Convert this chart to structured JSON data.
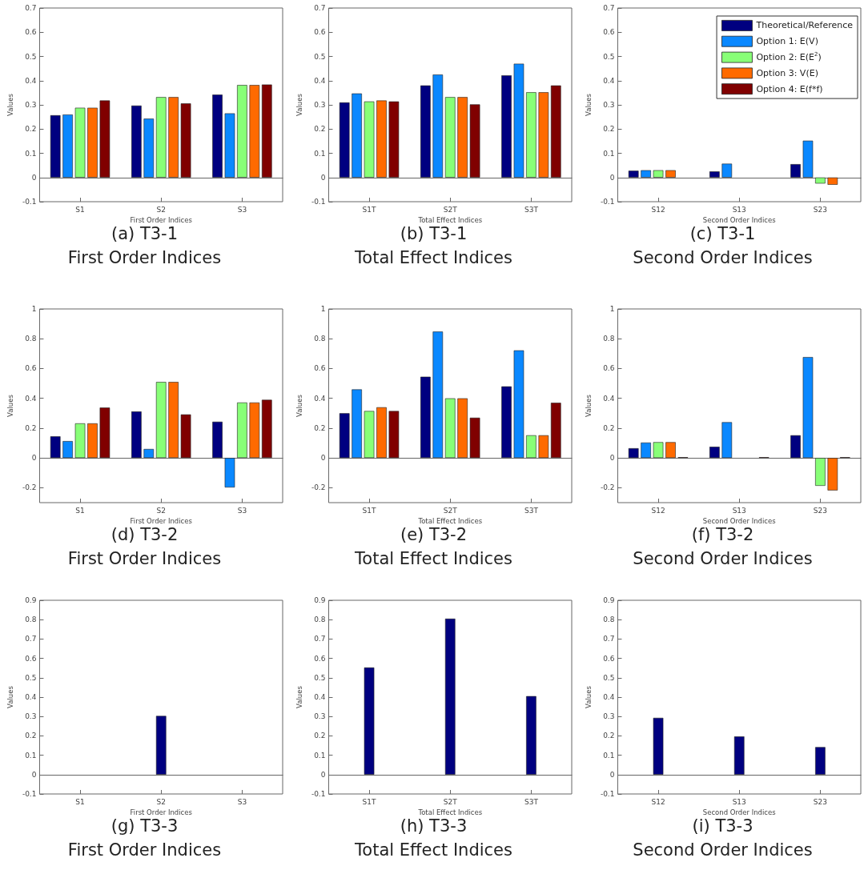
{
  "chart_data": [
    {
      "type": "bar",
      "title": "(a) T3-1",
      "subtitle": "First Order Indices",
      "xlabel": "First Order Indices",
      "ylabel": "Values",
      "categories": [
        "S1",
        "S2",
        "S3"
      ],
      "ylim": [
        -0.1,
        0.7
      ],
      "yticks": [
        -0.1,
        0,
        0.1,
        0.2,
        0.3,
        0.4,
        0.5,
        0.6,
        0.7
      ],
      "series": [
        {
          "color": "#000080",
          "values": [
            0.257,
            0.297,
            0.342
          ]
        },
        {
          "color": "#0a88ff",
          "values": [
            0.26,
            0.243,
            0.265
          ]
        },
        {
          "color": "#88ff77",
          "values": [
            0.288,
            0.332,
            0.382
          ]
        },
        {
          "color": "#ff6a00",
          "values": [
            0.288,
            0.332,
            0.382
          ]
        },
        {
          "color": "#800000",
          "values": [
            0.318,
            0.306,
            0.384
          ]
        }
      ]
    },
    {
      "type": "bar",
      "title": "(b) T3-1",
      "subtitle": "Total Effect Indices",
      "xlabel": "Total Effect Indices",
      "ylabel": "Values",
      "categories": [
        "S1T",
        "S2T",
        "S3T"
      ],
      "ylim": [
        -0.1,
        0.7
      ],
      "yticks": [
        -0.1,
        0,
        0.1,
        0.2,
        0.3,
        0.4,
        0.5,
        0.6,
        0.7
      ],
      "series": [
        {
          "color": "#000080",
          "values": [
            0.31,
            0.38,
            0.422
          ]
        },
        {
          "color": "#0a88ff",
          "values": [
            0.347,
            0.425,
            0.47
          ]
        },
        {
          "color": "#88ff77",
          "values": [
            0.314,
            0.332,
            0.352
          ]
        },
        {
          "color": "#ff6a00",
          "values": [
            0.318,
            0.332,
            0.352
          ]
        },
        {
          "color": "#800000",
          "values": [
            0.314,
            0.302,
            0.38
          ]
        }
      ]
    },
    {
      "type": "bar",
      "title": "(c) T3-1",
      "subtitle": "Second Order Indices",
      "xlabel": "Second Order Indices",
      "ylabel": "Values",
      "categories": [
        "S12",
        "S13",
        "S23"
      ],
      "ylim": [
        -0.1,
        0.7
      ],
      "yticks": [
        -0.1,
        0,
        0.1,
        0.2,
        0.3,
        0.4,
        0.5,
        0.6,
        0.7
      ],
      "legend": "top right",
      "series": [
        {
          "name": "Theoretical/Reference",
          "color": "#000080",
          "values": [
            0.028,
            0.025,
            0.055
          ]
        },
        {
          "name": "Option 1: E(V)",
          "color": "#0a88ff",
          "values": [
            0.03,
            0.057,
            0.152
          ]
        },
        {
          "name": "Option 2: E(E$^{2}$)",
          "color": "#88ff77",
          "values": [
            0.03,
            null,
            -0.025
          ]
        },
        {
          "name": "Option 3: V(E)",
          "color": "#ff6a00",
          "values": [
            0.03,
            null,
            -0.03
          ]
        },
        {
          "name": "Option 4: E(f*f)",
          "color": "#800000",
          "values": [
            null,
            null,
            null
          ]
        }
      ]
    },
    {
      "type": "bar",
      "title": "(d) T3-2",
      "subtitle": "First Order Indices",
      "xlabel": "First Order Indices",
      "ylabel": "Values",
      "categories": [
        "S1",
        "S2",
        "S3"
      ],
      "ylim": [
        -0.3,
        1
      ],
      "yticks": [
        -0.2,
        0,
        0.2,
        0.4,
        0.6,
        0.8,
        1
      ],
      "series": [
        {
          "color": "#000080",
          "values": [
            0.145,
            0.312,
            0.243
          ]
        },
        {
          "color": "#0a88ff",
          "values": [
            0.113,
            0.06,
            -0.198
          ]
        },
        {
          "color": "#88ff77",
          "values": [
            0.232,
            0.51,
            0.372
          ]
        },
        {
          "color": "#ff6a00",
          "values": [
            0.232,
            0.51,
            0.372
          ]
        },
        {
          "color": "#800000",
          "values": [
            0.338,
            0.292,
            0.39
          ]
        }
      ]
    },
    {
      "type": "bar",
      "title": "(e) T3-2",
      "subtitle": "Total Effect Indices",
      "xlabel": "Total Effect Indices",
      "ylabel": "Values",
      "categories": [
        "S1T",
        "S2T",
        "S3T"
      ],
      "ylim": [
        -0.3,
        1
      ],
      "yticks": [
        -0.2,
        0,
        0.2,
        0.4,
        0.6,
        0.8,
        1
      ],
      "series": [
        {
          "color": "#000080",
          "values": [
            0.3,
            0.545,
            0.48
          ]
        },
        {
          "color": "#0a88ff",
          "values": [
            0.46,
            0.848,
            0.722
          ]
        },
        {
          "color": "#88ff77",
          "values": [
            0.315,
            0.4,
            0.152
          ]
        },
        {
          "color": "#ff6a00",
          "values": [
            0.34,
            0.4,
            0.152
          ]
        },
        {
          "color": "#800000",
          "values": [
            0.315,
            0.27,
            0.37
          ]
        }
      ]
    },
    {
      "type": "bar",
      "title": "(f) T3-2",
      "subtitle": "Second Order Indices",
      "xlabel": "Second Order Indices",
      "ylabel": "Values",
      "categories": [
        "S12",
        "S13",
        "S23"
      ],
      "ylim": [
        -0.3,
        1
      ],
      "yticks": [
        -0.2,
        0,
        0.2,
        0.4,
        0.6,
        0.8,
        1
      ],
      "series": [
        {
          "color": "#000080",
          "values": [
            0.065,
            0.075,
            0.152
          ]
        },
        {
          "color": "#0a88ff",
          "values": [
            0.103,
            0.24,
            0.677
          ]
        },
        {
          "color": "#88ff77",
          "values": [
            0.106,
            null,
            -0.187
          ]
        },
        {
          "color": "#ff6a00",
          "values": [
            0.106,
            null,
            -0.218
          ]
        },
        {
          "color": "#800000",
          "values": [
            0.005,
            0.005,
            0.005
          ]
        }
      ]
    },
    {
      "type": "bar",
      "title": "(g) T3-3",
      "subtitle": "First Order Indices",
      "xlabel": "First Order Indices",
      "ylabel": "Values",
      "categories": [
        "S1",
        "S2",
        "S3"
      ],
      "ylim": [
        -0.1,
        0.9
      ],
      "yticks": [
        -0.1,
        0,
        0.1,
        0.2,
        0.3,
        0.4,
        0.5,
        0.6,
        0.7,
        0.8,
        0.9
      ],
      "series": [
        {
          "color": "#000080",
          "values": [
            null,
            0.303,
            null
          ]
        }
      ]
    },
    {
      "type": "bar",
      "title": "(h) T3-3",
      "subtitle": "Total Effect Indices",
      "xlabel": "Total Effect Indices",
      "ylabel": "Values",
      "categories": [
        "S1T",
        "S2T",
        "S3T"
      ],
      "ylim": [
        -0.1,
        0.9
      ],
      "yticks": [
        -0.1,
        0,
        0.1,
        0.2,
        0.3,
        0.4,
        0.5,
        0.6,
        0.7,
        0.8,
        0.9
      ],
      "series": [
        {
          "color": "#000080",
          "values": [
            0.553,
            0.805,
            0.405
          ]
        }
      ]
    },
    {
      "type": "bar",
      "title": "(i) T3-3",
      "subtitle": "Second Order Indices",
      "xlabel": "Second Order Indices",
      "ylabel": "Values",
      "categories": [
        "S12",
        "S13",
        "S23"
      ],
      "ylim": [
        -0.1,
        0.9
      ],
      "yticks": [
        -0.1,
        0,
        0.1,
        0.2,
        0.3,
        0.4,
        0.5,
        0.6,
        0.7,
        0.8,
        0.9
      ],
      "series": [
        {
          "color": "#000080",
          "values": [
            0.293,
            0.197,
            0.142
          ]
        }
      ]
    }
  ]
}
